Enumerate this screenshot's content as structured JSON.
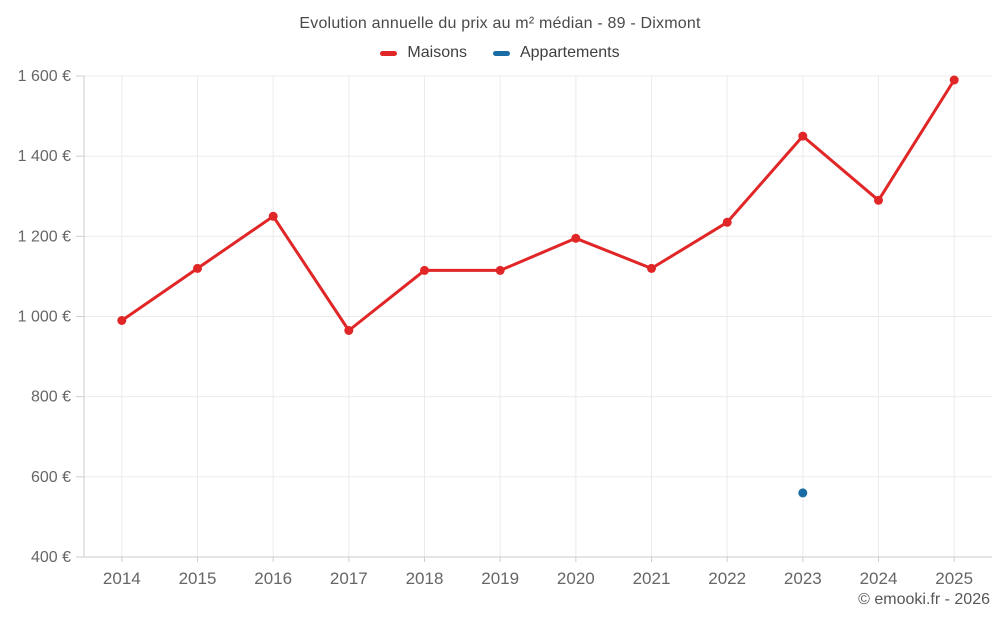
{
  "title": "Evolution annuelle du prix au m² médian - 89 - Dixmont",
  "legend": [
    {
      "label": "Maisons",
      "color": "#e02627"
    },
    {
      "label": "Appartements",
      "color": "#1a6da4"
    }
  ],
  "footer": "© emooki.fr - 2026",
  "colors": {
    "maisons": "#e02627",
    "appartements": "#1a6da4",
    "gridline": "#ebebeb",
    "axis": "#cccccc",
    "tick": "#cfcfcf"
  },
  "chart_data": {
    "type": "line",
    "title": "Evolution annuelle du prix au m² médian - 89 - Dixmont",
    "categories": [
      "2014",
      "2015",
      "2016",
      "2017",
      "2018",
      "2019",
      "2020",
      "2021",
      "2022",
      "2023",
      "2024",
      "2025"
    ],
    "series": [
      {
        "name": "Maisons",
        "color": "#e02627",
        "values": [
          990,
          1120,
          1250,
          965,
          1115,
          1115,
          1195,
          1120,
          1235,
          1450,
          1290,
          1590
        ]
      },
      {
        "name": "Appartements",
        "color": "#1a6da4",
        "values": [
          null,
          null,
          null,
          null,
          null,
          null,
          null,
          null,
          null,
          560,
          null,
          null
        ]
      }
    ],
    "xlabel": "",
    "ylabel": "",
    "ylim": [
      400,
      1600
    ],
    "grid": true,
    "legend_position": "top",
    "y_ticks": [
      {
        "value": 400,
        "label": "400 €"
      },
      {
        "value": 600,
        "label": "600 €"
      },
      {
        "value": 800,
        "label": "800 €"
      },
      {
        "value": 1000,
        "label": "1 000 €"
      },
      {
        "value": 1200,
        "label": "1 200 €"
      },
      {
        "value": 1400,
        "label": "1 400 €"
      },
      {
        "value": 1600,
        "label": "1 600 €"
      }
    ]
  }
}
